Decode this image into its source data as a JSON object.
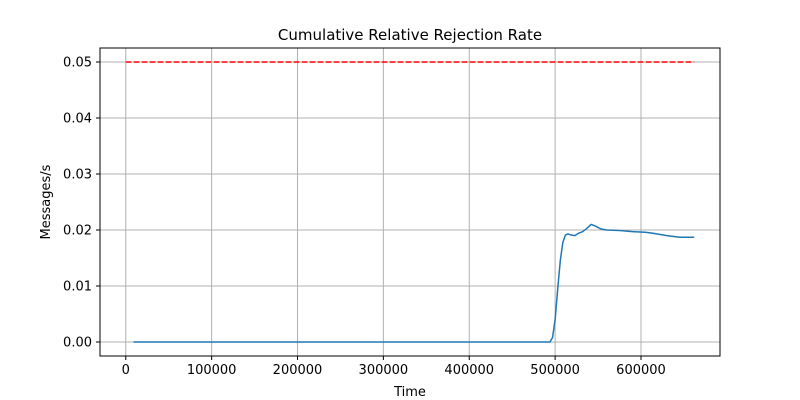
{
  "chart_data": {
    "type": "line",
    "title": "Cumulative Relative Rejection Rate",
    "xlabel": "Time",
    "ylabel": "Messages/s",
    "xlim": [
      -30000,
      692000
    ],
    "ylim": [
      -0.0025,
      0.0525
    ],
    "xticks": [
      0,
      100000,
      200000,
      300000,
      400000,
      500000,
      600000
    ],
    "yticks": [
      0.0,
      0.01,
      0.02,
      0.03,
      0.04,
      0.05
    ],
    "xtick_labels": [
      "0",
      "100000",
      "200000",
      "300000",
      "400000",
      "500000",
      "600000"
    ],
    "ytick_labels": [
      "0.00",
      "0.01",
      "0.02",
      "0.03",
      "0.04",
      "0.05"
    ],
    "grid": true,
    "series": [
      {
        "color": "#1f77b4",
        "style": "solid",
        "points": [
          [
            9000,
            0.0
          ],
          [
            100000,
            0.0
          ],
          [
            200000,
            0.0
          ],
          [
            300000,
            0.0
          ],
          [
            400000,
            0.0
          ],
          [
            490000,
            0.0
          ],
          [
            494000,
            0.0
          ],
          [
            497000,
            0.0008
          ],
          [
            500000,
            0.004
          ],
          [
            503000,
            0.0095
          ],
          [
            506000,
            0.0145
          ],
          [
            509000,
            0.0178
          ],
          [
            512000,
            0.0191
          ],
          [
            515000,
            0.0193
          ],
          [
            519000,
            0.0191
          ],
          [
            523000,
            0.019
          ],
          [
            527000,
            0.0194
          ],
          [
            532000,
            0.0197
          ],
          [
            537000,
            0.0203
          ],
          [
            542000,
            0.021
          ],
          [
            547000,
            0.0207
          ],
          [
            553000,
            0.0202
          ],
          [
            560000,
            0.02
          ],
          [
            575000,
            0.0199
          ],
          [
            590000,
            0.0197
          ],
          [
            605000,
            0.0196
          ],
          [
            615000,
            0.0194
          ],
          [
            630000,
            0.019
          ],
          [
            645000,
            0.0187
          ],
          [
            662000,
            0.0187
          ]
        ]
      },
      {
        "color": "#ff0000",
        "style": "dashed",
        "points": [
          [
            0,
            0.05
          ],
          [
            662000,
            0.05
          ]
        ]
      }
    ]
  }
}
